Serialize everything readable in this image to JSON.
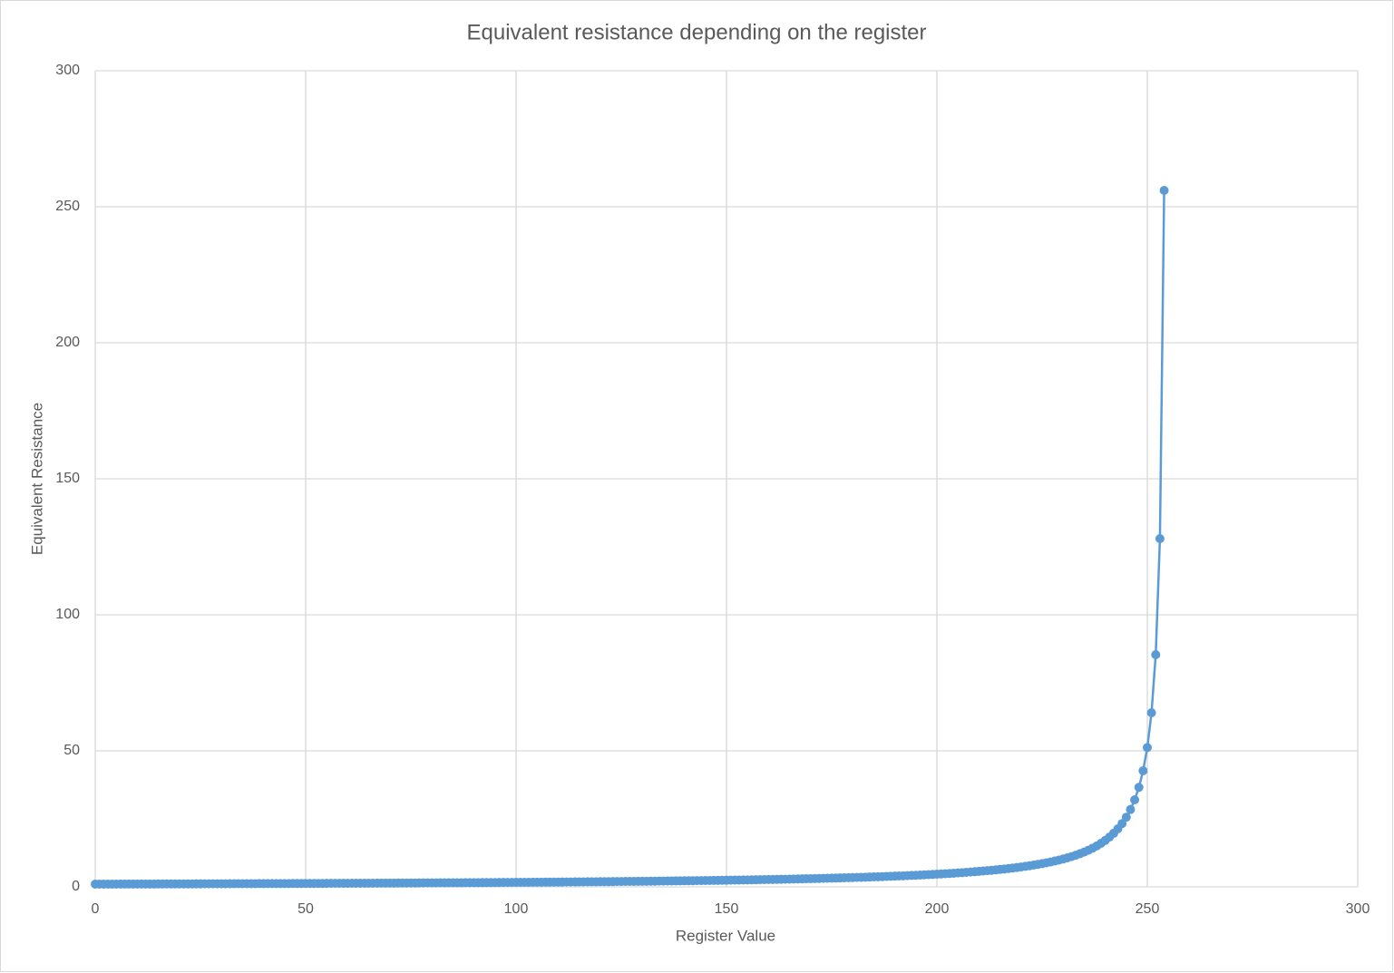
{
  "chart_data": {
    "type": "scatter-line",
    "title": "Equivalent resistance depending on the register",
    "x_label": "Register Value",
    "y_label": "Equivalent Resistance",
    "xlim": [
      0,
      300
    ],
    "xticks": [
      0,
      50,
      100,
      150,
      200,
      250,
      300
    ],
    "ylim": [
      0,
      300
    ],
    "yticks": [
      0,
      50,
      100,
      150,
      200,
      250,
      300
    ],
    "grid": true,
    "series": [
      {
        "color": "#5b9bd5",
        "x": [
          0,
          1,
          2,
          3,
          4,
          5,
          6,
          7,
          8,
          9,
          10,
          11,
          12,
          13,
          14,
          15,
          16,
          17,
          18,
          19,
          20,
          21,
          22,
          23,
          24,
          25,
          26,
          27,
          28,
          29,
          30,
          31,
          32,
          33,
          34,
          35,
          36,
          37,
          38,
          39,
          40,
          41,
          42,
          43,
          44,
          45,
          46,
          47,
          48,
          49,
          50,
          51,
          52,
          53,
          54,
          55,
          56,
          57,
          58,
          59,
          60,
          61,
          62,
          63,
          64,
          65,
          66,
          67,
          68,
          69,
          70,
          71,
          72,
          73,
          74,
          75,
          76,
          77,
          78,
          79,
          80,
          81,
          82,
          83,
          84,
          85,
          86,
          87,
          88,
          89,
          90,
          91,
          92,
          93,
          94,
          95,
          96,
          97,
          98,
          99,
          100,
          101,
          102,
          103,
          104,
          105,
          106,
          107,
          108,
          109,
          110,
          111,
          112,
          113,
          114,
          115,
          116,
          117,
          118,
          119,
          120,
          121,
          122,
          123,
          124,
          125,
          126,
          127,
          128,
          129,
          130,
          131,
          132,
          133,
          134,
          135,
          136,
          137,
          138,
          139,
          140,
          141,
          142,
          143,
          144,
          145,
          146,
          147,
          148,
          149,
          150,
          151,
          152,
          153,
          154,
          155,
          156,
          157,
          158,
          159,
          160,
          161,
          162,
          163,
          164,
          165,
          166,
          167,
          168,
          169,
          170,
          171,
          172,
          173,
          174,
          175,
          176,
          177,
          178,
          179,
          180,
          181,
          182,
          183,
          184,
          185,
          186,
          187,
          188,
          189,
          190,
          191,
          192,
          193,
          194,
          195,
          196,
          197,
          198,
          199,
          200,
          201,
          202,
          203,
          204,
          205,
          206,
          207,
          208,
          209,
          210,
          211,
          212,
          213,
          214,
          215,
          216,
          217,
          218,
          219,
          220,
          221,
          222,
          223,
          224,
          225,
          226,
          227,
          228,
          229,
          230,
          231,
          232,
          233,
          234,
          235,
          236,
          237,
          238,
          239,
          240,
          241,
          242,
          243,
          244,
          245,
          246,
          247,
          248,
          249,
          250,
          251,
          252,
          253,
          254
        ],
        "values": [
          1,
          1.01,
          1.01,
          1.02,
          1.02,
          1.02,
          1.03,
          1.03,
          1.04,
          1.04,
          1.04,
          1.05,
          1.05,
          1.06,
          1.06,
          1.07,
          1.07,
          1.08,
          1.08,
          1.08,
          1.09,
          1.09,
          1.1,
          1.1,
          1.11,
          1.11,
          1.12,
          1.12,
          1.13,
          1.13,
          1.14,
          1.14,
          1.15,
          1.15,
          1.16,
          1.16,
          1.17,
          1.17,
          1.18,
          1.19,
          1.19,
          1.2,
          1.2,
          1.21,
          1.21,
          1.22,
          1.22,
          1.23,
          1.24,
          1.24,
          1.25,
          1.25,
          1.26,
          1.27,
          1.27,
          1.28,
          1.29,
          1.29,
          1.3,
          1.31,
          1.31,
          1.32,
          1.33,
          1.33,
          1.34,
          1.35,
          1.35,
          1.36,
          1.37,
          1.38,
          1.38,
          1.39,
          1.4,
          1.41,
          1.41,
          1.42,
          1.43,
          1.44,
          1.45,
          1.45,
          1.46,
          1.47,
          1.48,
          1.49,
          1.5,
          1.51,
          1.51,
          1.52,
          1.53,
          1.54,
          1.55,
          1.56,
          1.57,
          1.58,
          1.59,
          1.6,
          1.61,
          1.62,
          1.63,
          1.64,
          1.65,
          1.66,
          1.67,
          1.68,
          1.7,
          1.71,
          1.72,
          1.73,
          1.74,
          1.75,
          1.77,
          1.78,
          1.79,
          1.8,
          1.82,
          1.83,
          1.84,
          1.86,
          1.87,
          1.88,
          1.9,
          1.91,
          1.92,
          1.94,
          1.95,
          1.97,
          1.98,
          2,
          2.02,
          2.03,
          2.05,
          2.06,
          2.08,
          2.1,
          2.12,
          2.13,
          2.15,
          2.17,
          2.19,
          2.21,
          2.23,
          2.25,
          2.27,
          2.29,
          2.31,
          2.33,
          2.35,
          2.37,
          2.39,
          2.42,
          2.44,
          2.46,
          2.49,
          2.51,
          2.53,
          2.56,
          2.59,
          2.61,
          2.64,
          2.67,
          2.69,
          2.72,
          2.75,
          2.78,
          2.81,
          2.84,
          2.88,
          2.91,
          2.94,
          2.98,
          3.01,
          3.05,
          3.08,
          3.12,
          3.16,
          3.2,
          3.24,
          3.28,
          3.32,
          3.37,
          3.41,
          3.46,
          3.51,
          3.56,
          3.61,
          3.66,
          3.71,
          3.76,
          3.82,
          3.88,
          3.94,
          4,
          4.06,
          4.13,
          4.2,
          4.27,
          4.34,
          4.41,
          4.49,
          4.57,
          4.65,
          4.74,
          4.83,
          4.92,
          5.02,
          5.12,
          5.22,
          5.33,
          5.45,
          5.57,
          5.69,
          5.82,
          5.95,
          6.1,
          6.24,
          6.4,
          6.56,
          6.74,
          6.92,
          7.11,
          7.31,
          7.53,
          7.76,
          8,
          8.26,
          8.53,
          8.83,
          9.14,
          9.48,
          9.85,
          10.24,
          10.67,
          11.13,
          11.64,
          12.19,
          12.8,
          13.47,
          14.22,
          15.06,
          16,
          17.07,
          18.29,
          19.69,
          21.33,
          23.27,
          25.6,
          28.44,
          32,
          36.57,
          42.67,
          51.2,
          64,
          85.33,
          128,
          256
        ]
      }
    ]
  }
}
